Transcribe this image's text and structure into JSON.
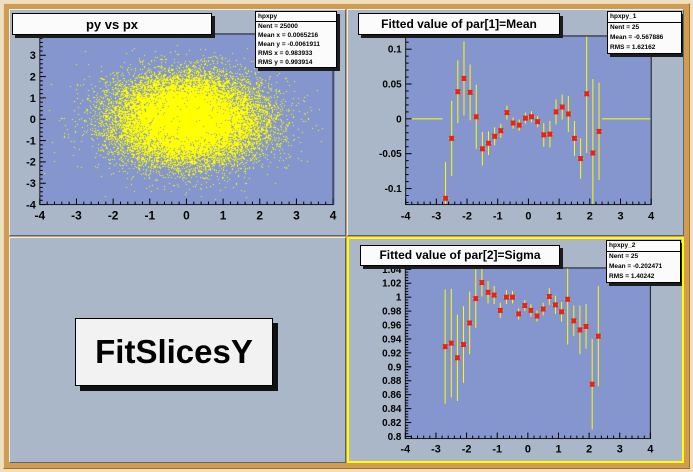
{
  "colors": {
    "window_bg": "#ecdfc2",
    "canvas_frame": "#d29c50",
    "pad_bg": "#a9b7c8",
    "frame_bg": "#8496cd",
    "frame_border": "#16161c",
    "data_yellow": "#ffff00",
    "marker_red": "#e5231b",
    "box_bg": "#fbfbfb",
    "active_pad_outline": "#ffff00",
    "text": "#000000"
  },
  "pads": {
    "scatter": {
      "title": "py vs px",
      "stats_name": "hpxpy",
      "stats_lines": [
        "Nent = 25000",
        "Mean x = 0.0065216",
        "Mean y = -0.0061911",
        "RMS x  = 0.983933",
        "RMS y  = 0.993914"
      ]
    },
    "mean": {
      "title": "Fitted value of par[1]=Mean",
      "stats_name": "hpxpy_1",
      "stats_lines": [
        "Nent = 25",
        "Mean  = -0.567886",
        "RMS   =  1.62162"
      ]
    },
    "label": {
      "text": "FitSlicesY"
    },
    "sigma": {
      "title": "Fitted value of par[2]=Sigma",
      "stats_name": "hpxpy_2",
      "stats_lines": [
        "Nent = 25",
        "Mean  = -0.202471",
        "RMS   =  1.40242"
      ]
    }
  },
  "chart_data": [
    {
      "id": "scatter",
      "type": "scatter",
      "title": "py vs px",
      "xlim": [
        -4,
        4
      ],
      "ylim": [
        -4,
        4
      ],
      "x_tick_vals": [
        -4,
        -3,
        -2,
        -1,
        0,
        1,
        2,
        3,
        4
      ],
      "x_tick_labels": [
        "-4",
        "-3",
        "-2",
        "-1",
        "0",
        "1",
        "2",
        "3",
        "4"
      ],
      "y_tick_vals": [
        4,
        3,
        2,
        1,
        0,
        -1,
        -2,
        -3,
        -4
      ],
      "y_tick_labels": [
        "4",
        "3",
        "2",
        "1",
        "0",
        "-1",
        "-2",
        "-3",
        "-4"
      ],
      "x_minor_step": 0.2,
      "y_minor_step": 0.2,
      "distribution": {
        "kind": "gaussian_2d",
        "entries": 25000,
        "mean_x": 0.0065216,
        "mean_y": -0.0061911,
        "rms_x": 0.983933,
        "rms_y": 0.993914
      },
      "render": {
        "seed": 20011,
        "points_drawn": 24000
      }
    },
    {
      "id": "mean",
      "type": "errorbar",
      "title": "Fitted value of par[1]=Mean",
      "xlim": [
        -4,
        4
      ],
      "ylim": [
        -0.123,
        0.119
      ],
      "x_tick_vals": [
        -4,
        -3,
        -2,
        -1,
        0,
        1,
        2,
        3,
        4
      ],
      "x_tick_labels": [
        "-4",
        "-3",
        "-2",
        "-1",
        "0",
        "1",
        "2",
        "3",
        "4"
      ],
      "y_tick_vals": [
        0.1,
        0.05,
        0,
        -0.05,
        -0.1
      ],
      "y_tick_labels": [
        "0.1",
        "0.05",
        "0",
        "-0.05",
        "-0.1"
      ],
      "x_minor_step": 0.2,
      "y_minor_step": 0.01,
      "xerr": 0.1,
      "baseline": {
        "y": 0,
        "segments": [
          [
            -4,
            -2.8
          ],
          [
            2.4,
            4
          ]
        ]
      },
      "x": [
        -2.7,
        -2.5,
        -2.3,
        -2.1,
        -1.9,
        -1.7,
        -1.5,
        -1.3,
        -1.1,
        -0.9,
        -0.7,
        -0.5,
        -0.3,
        -0.1,
        0.1,
        0.3,
        0.5,
        0.7,
        0.9,
        1.1,
        1.3,
        1.5,
        1.7,
        1.9,
        2.1,
        2.3
      ],
      "y": [
        -0.114,
        -0.028,
        0.039,
        0.058,
        0.038,
        0.003,
        -0.043,
        -0.035,
        -0.025,
        -0.017,
        0.009,
        -0.006,
        -0.009,
        0.001,
        0.003,
        -0.004,
        -0.023,
        -0.022,
        0.01,
        0.017,
        0.007,
        -0.028,
        -0.057,
        0.036,
        -0.049,
        -0.018
      ],
      "yerr": [
        0.052,
        0.054,
        0.045,
        0.053,
        0.04,
        0.046,
        0.024,
        0.017,
        0.013,
        0.01,
        0.01,
        0.008,
        0.008,
        0.008,
        0.008,
        0.008,
        0.017,
        0.019,
        0.018,
        0.018,
        0.026,
        0.025,
        0.029,
        0.085,
        0.106,
        0.07
      ],
      "stats": {
        "entries": 25,
        "mean": -0.567886,
        "rms": 1.62162
      }
    },
    {
      "id": "sigma",
      "type": "errorbar",
      "title": "Fitted value of par[2]=Sigma",
      "xlim": [
        -4,
        4
      ],
      "ylim": [
        0.797,
        1.042
      ],
      "x_tick_vals": [
        -4,
        -3,
        -2,
        -1,
        0,
        1,
        2,
        3,
        4
      ],
      "x_tick_labels": [
        "-4",
        "-3",
        "-2",
        "-1",
        "0",
        "1",
        "2",
        "3",
        "4"
      ],
      "y_tick_vals": [
        1.04,
        1.02,
        1,
        0.98,
        0.96,
        0.94,
        0.92,
        0.9,
        0.88,
        0.86,
        0.84,
        0.82,
        0.8
      ],
      "y_tick_labels": [
        "1.04",
        "1.02",
        "1",
        "0.98",
        "0.96",
        "0.94",
        "0.92",
        "0.9",
        "0.88",
        "0.86",
        "0.84",
        "0.82",
        "0.8"
      ],
      "x_minor_step": 0.2,
      "y_minor_step": 0.004,
      "xerr": 0.1,
      "x": [
        -2.7,
        -2.5,
        -2.3,
        -2.1,
        -1.9,
        -1.7,
        -1.5,
        -1.3,
        -1.1,
        -0.9,
        -0.7,
        -0.5,
        -0.3,
        -0.1,
        0.1,
        0.3,
        0.5,
        0.7,
        0.9,
        1.1,
        1.3,
        1.5,
        1.7,
        1.9,
        2.1,
        2.3
      ],
      "y": [
        0.929,
        0.934,
        0.913,
        0.932,
        0.963,
        0.998,
        1.021,
        1.007,
        1.003,
        0.981,
        1.0,
        1.0,
        0.976,
        0.988,
        0.981,
        0.973,
        0.983,
        1.001,
        0.989,
        0.979,
        0.997,
        0.966,
        0.953,
        0.958,
        0.875,
        0.944
      ],
      "yerr": [
        0.082,
        0.078,
        0.062,
        0.055,
        0.045,
        0.042,
        0.02,
        0.016,
        0.013,
        0.011,
        0.01,
        0.009,
        0.008,
        0.008,
        0.009,
        0.008,
        0.009,
        0.012,
        0.013,
        0.014,
        0.065,
        0.022,
        0.035,
        0.032,
        0.065,
        0.072
      ],
      "stats": {
        "entries": 25,
        "mean": -0.202471,
        "rms": 1.40242
      }
    }
  ]
}
